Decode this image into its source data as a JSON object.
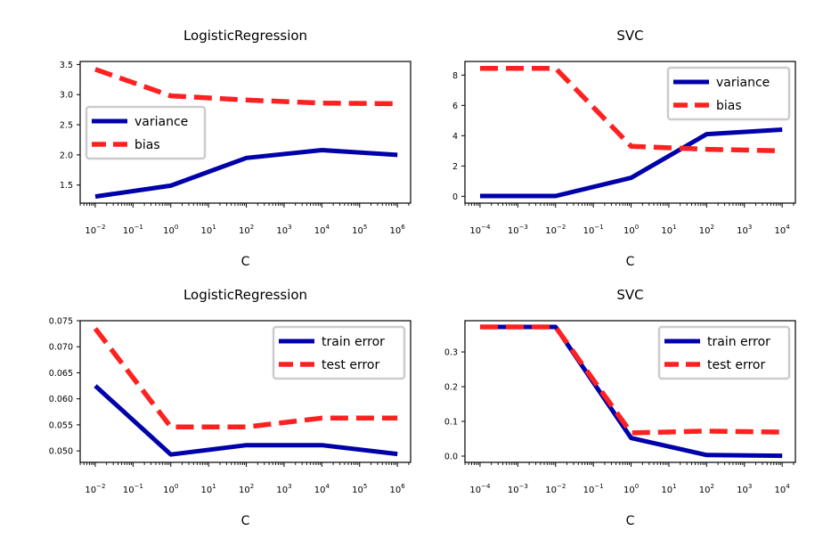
{
  "chart_data": [
    {
      "type": "line",
      "title": "LogisticRegression",
      "xlabel": "C",
      "ylabel": "",
      "xscale": "log",
      "xlim_exp": [
        -2.4,
        6.35
      ],
      "ylim": [
        1.2,
        3.55
      ],
      "yticks": [
        "1.5",
        "2.0",
        "2.5",
        "3.0",
        "3.5"
      ],
      "xticks": [
        {
          "base": "10",
          "exp": "−2"
        },
        {
          "base": "10",
          "exp": "−1"
        },
        {
          "base": "10",
          "exp": "0"
        },
        {
          "base": "10",
          "exp": "1"
        },
        {
          "base": "10",
          "exp": "2"
        },
        {
          "base": "10",
          "exp": "3"
        },
        {
          "base": "10",
          "exp": "4"
        },
        {
          "base": "10",
          "exp": "5"
        },
        {
          "base": "10",
          "exp": "6"
        }
      ],
      "legend_position": "center-left",
      "x_exp": [
        -2,
        0,
        2,
        4,
        6
      ],
      "series": [
        {
          "name": "variance",
          "values": [
            1.31,
            1.49,
            1.95,
            2.08,
            2.0
          ],
          "color": "#0000aa",
          "dash": "solid"
        },
        {
          "name": "bias",
          "values": [
            3.42,
            2.98,
            2.91,
            2.86,
            2.85
          ],
          "color": "#ff2020",
          "dash": "dashed"
        }
      ]
    },
    {
      "type": "line",
      "title": "SVC",
      "xlabel": "C",
      "ylabel": "",
      "xscale": "log",
      "xlim_exp": [
        -4.4,
        4.35
      ],
      "ylim": [
        -0.45,
        8.9
      ],
      "yticks": [
        "0",
        "2",
        "4",
        "6",
        "8"
      ],
      "xticks": [
        {
          "base": "10",
          "exp": "−4"
        },
        {
          "base": "10",
          "exp": "−3"
        },
        {
          "base": "10",
          "exp": "−2"
        },
        {
          "base": "10",
          "exp": "−1"
        },
        {
          "base": "10",
          "exp": "0"
        },
        {
          "base": "10",
          "exp": "1"
        },
        {
          "base": "10",
          "exp": "2"
        },
        {
          "base": "10",
          "exp": "3"
        },
        {
          "base": "10",
          "exp": "4"
        }
      ],
      "legend_position": "top-right",
      "x_exp": [
        -4,
        -2,
        0,
        2,
        4
      ],
      "series": [
        {
          "name": "variance",
          "values": [
            0.02,
            0.02,
            1.22,
            4.1,
            4.4
          ],
          "color": "#0000aa",
          "dash": "solid"
        },
        {
          "name": "bias",
          "values": [
            8.45,
            8.45,
            3.3,
            3.1,
            3.0
          ],
          "color": "#ff2020",
          "dash": "dashed"
        }
      ]
    },
    {
      "type": "line",
      "title": "LogisticRegression",
      "xlabel": "C",
      "ylabel": "",
      "xscale": "log",
      "xlim_exp": [
        -2.4,
        6.35
      ],
      "ylim": [
        0.0478,
        0.075
      ],
      "yticks": [
        "0.050",
        "0.055",
        "0.060",
        "0.065",
        "0.070",
        "0.075"
      ],
      "xticks": [
        {
          "base": "10",
          "exp": "−2"
        },
        {
          "base": "10",
          "exp": "−1"
        },
        {
          "base": "10",
          "exp": "0"
        },
        {
          "base": "10",
          "exp": "1"
        },
        {
          "base": "10",
          "exp": "2"
        },
        {
          "base": "10",
          "exp": "3"
        },
        {
          "base": "10",
          "exp": "4"
        },
        {
          "base": "10",
          "exp": "5"
        },
        {
          "base": "10",
          "exp": "6"
        }
      ],
      "legend_position": "top-right",
      "x_exp": [
        -2,
        0,
        2,
        4,
        6
      ],
      "series": [
        {
          "name": "train error",
          "values": [
            0.0625,
            0.0493,
            0.0511,
            0.0511,
            0.0494
          ],
          "color": "#0000aa",
          "dash": "solid"
        },
        {
          "name": "test error",
          "values": [
            0.0735,
            0.0546,
            0.0546,
            0.0563,
            0.0563
          ],
          "color": "#ff2020",
          "dash": "dashed"
        }
      ]
    },
    {
      "type": "line",
      "title": "SVC",
      "xlabel": "C",
      "ylabel": "",
      "xscale": "log",
      "xlim_exp": [
        -4.4,
        4.35
      ],
      "ylim": [
        -0.018,
        0.39
      ],
      "yticks": [
        "0.0",
        "0.1",
        "0.2",
        "0.3"
      ],
      "xticks": [
        {
          "base": "10",
          "exp": "−4"
        },
        {
          "base": "10",
          "exp": "−3"
        },
        {
          "base": "10",
          "exp": "−2"
        },
        {
          "base": "10",
          "exp": "−1"
        },
        {
          "base": "10",
          "exp": "0"
        },
        {
          "base": "10",
          "exp": "1"
        },
        {
          "base": "10",
          "exp": "2"
        },
        {
          "base": "10",
          "exp": "3"
        },
        {
          "base": "10",
          "exp": "4"
        }
      ],
      "legend_position": "top-right",
      "x_exp": [
        -4,
        -2,
        0,
        2,
        4
      ],
      "series": [
        {
          "name": "train error",
          "values": [
            0.372,
            0.372,
            0.052,
            0.003,
            0.001
          ],
          "color": "#0000aa",
          "dash": "solid"
        },
        {
          "name": "test error",
          "values": [
            0.372,
            0.372,
            0.067,
            0.072,
            0.069
          ],
          "color": "#ff2020",
          "dash": "dashed"
        }
      ]
    }
  ]
}
